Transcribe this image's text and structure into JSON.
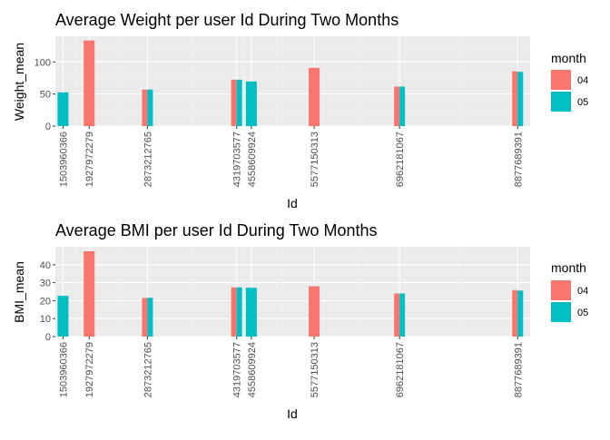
{
  "chart_data": [
    {
      "type": "bar",
      "title": "Average Weight per user Id During Two Months",
      "xlabel": "Id",
      "ylabel": "Weight_mean",
      "x_scale": "numeric",
      "xlim": [
        1380000000,
        9080000000
      ],
      "ylim": [
        0,
        140
      ],
      "yticks": [
        0,
        50,
        100
      ],
      "x_minor_grid": true,
      "grid": true,
      "legend": {
        "title": "month",
        "entries": [
          "04",
          "05"
        ],
        "placement": "right"
      },
      "colors": {
        "04": "#F8766D",
        "05": "#00BFC4"
      },
      "ids": [
        "1503960366",
        "1927972279",
        "2873212765",
        "4319703577",
        "4558609924",
        "5577150313",
        "6962181067",
        "8877689391"
      ],
      "series": [
        {
          "name": "04",
          "values": [
            null,
            133.5,
            57.0,
            72.4,
            null,
            90.7,
            61.6,
            85.5
          ]
        },
        {
          "name": "05",
          "values": [
            52.6,
            null,
            57.0,
            72.4,
            69.6,
            null,
            61.6,
            84.6
          ]
        }
      ],
      "split_bars": [
        4319703577,
        4558609924
      ]
    },
    {
      "type": "bar",
      "title": "Average BMI per user Id During Two Months",
      "xlabel": "Id",
      "ylabel": "BMI_mean",
      "x_scale": "numeric",
      "xlim": [
        1380000000,
        9080000000
      ],
      "ylim": [
        0,
        50
      ],
      "yticks": [
        0,
        10,
        20,
        30,
        40
      ],
      "x_minor_grid": true,
      "grid": true,
      "legend": {
        "title": "month",
        "entries": [
          "04",
          "05"
        ],
        "placement": "right"
      },
      "colors": {
        "04": "#F8766D",
        "05": "#00BFC4"
      },
      "ids": [
        "1503960366",
        "1927972279",
        "2873212765",
        "4319703577",
        "4558609924",
        "5577150313",
        "6962181067",
        "8877689391"
      ],
      "series": [
        {
          "name": "04",
          "values": [
            null,
            47.5,
            21.5,
            27.4,
            null,
            28.0,
            24.0,
            25.9
          ]
        },
        {
          "name": "05",
          "values": [
            22.7,
            null,
            21.6,
            27.4,
            27.2,
            null,
            24.0,
            25.6
          ]
        }
      ],
      "split_bars": [
        4319703577,
        4558609924
      ]
    }
  ]
}
